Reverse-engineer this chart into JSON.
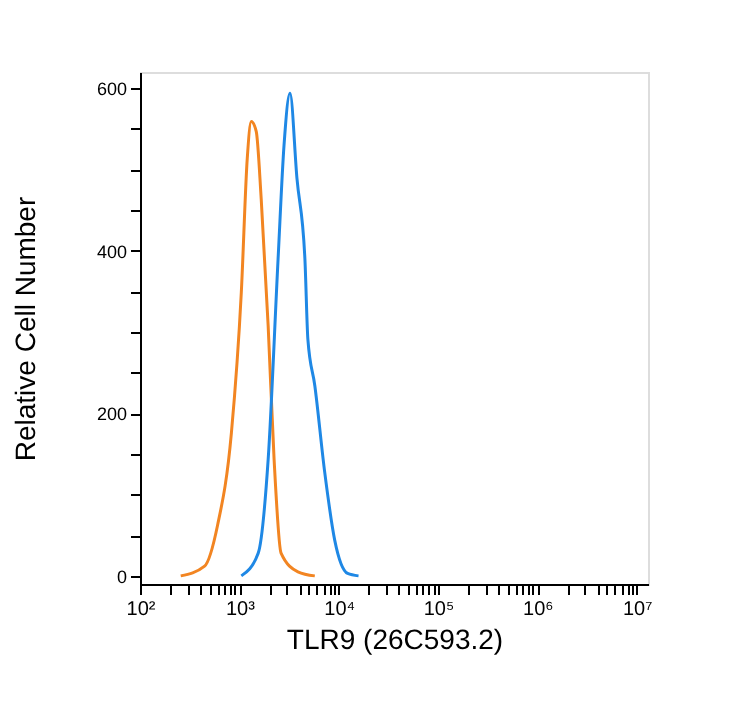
{
  "chart_data": {
    "type": "line",
    "xlabel": "TLR9 (26C593.2)",
    "ylabel": "Relative Cell Number",
    "log": "x",
    "grid": false,
    "legend": false,
    "marker": "none",
    "line_style": "solid",
    "xlim": [
      100,
      13000000
    ],
    "ylim": [
      -10,
      620
    ],
    "xticks": [
      {
        "value": 100,
        "label": "10²"
      },
      {
        "value": 200,
        "label": null
      },
      {
        "value": 300,
        "label": null
      },
      {
        "value": 400,
        "label": null
      },
      {
        "value": 500,
        "label": null
      },
      {
        "value": 600,
        "label": null
      },
      {
        "value": 700,
        "label": null
      },
      {
        "value": 800,
        "label": null
      },
      {
        "value": 900,
        "label": null
      },
      {
        "value": 1000,
        "label": "10³"
      },
      {
        "value": 2000,
        "label": null
      },
      {
        "value": 3000,
        "label": null
      },
      {
        "value": 4000,
        "label": null
      },
      {
        "value": 5000,
        "label": null
      },
      {
        "value": 6000,
        "label": null
      },
      {
        "value": 7000,
        "label": null
      },
      {
        "value": 8000,
        "label": null
      },
      {
        "value": 9000,
        "label": null
      },
      {
        "value": 10000,
        "label": "10⁴"
      },
      {
        "value": 20000,
        "label": null
      },
      {
        "value": 30000,
        "label": null
      },
      {
        "value": 40000,
        "label": null
      },
      {
        "value": 50000,
        "label": null
      },
      {
        "value": 60000,
        "label": null
      },
      {
        "value": 70000,
        "label": null
      },
      {
        "value": 80000,
        "label": null
      },
      {
        "value": 90000,
        "label": null
      },
      {
        "value": 100000,
        "label": "10⁵"
      },
      {
        "value": 200000,
        "label": null
      },
      {
        "value": 300000,
        "label": null
      },
      {
        "value": 400000,
        "label": null
      },
      {
        "value": 500000,
        "label": null
      },
      {
        "value": 600000,
        "label": null
      },
      {
        "value": 700000,
        "label": null
      },
      {
        "value": 800000,
        "label": null
      },
      {
        "value": 900000,
        "label": null
      },
      {
        "value": 1000000,
        "label": "10⁶"
      },
      {
        "value": 2000000,
        "label": null
      },
      {
        "value": 3000000,
        "label": null
      },
      {
        "value": 4000000,
        "label": null
      },
      {
        "value": 5000000,
        "label": null
      },
      {
        "value": 6000000,
        "label": null
      },
      {
        "value": 7000000,
        "label": null
      },
      {
        "value": 8000000,
        "label": null
      },
      {
        "value": 9000000,
        "label": null
      },
      {
        "value": 10000000,
        "label": "10⁷"
      }
    ],
    "yticks": [
      0,
      {
        "value": 50,
        "label": null
      },
      {
        "value": 100,
        "label": null
      },
      {
        "value": 150,
        "label": null
      },
      200,
      {
        "value": 250,
        "label": null
      },
      {
        "value": 300,
        "label": null
      },
      {
        "value": 350,
        "label": null
      },
      400,
      {
        "value": 450,
        "label": null
      },
      {
        "value": 500,
        "label": null
      },
      {
        "value": 550,
        "label": null
      },
      600
    ],
    "series": [
      {
        "color": "#f28522",
        "x": [
          257,
          447,
          603,
          832,
          1047,
          1202,
          1318,
          1479,
          1660,
          1950,
          2239,
          2630,
          3890,
          5750
        ],
        "values": [
          0,
          12,
          62,
          176,
          349,
          514,
          559,
          547,
          464,
          308,
          143,
          28,
          5,
          0
        ]
      },
      {
        "color": "#1f88e5",
        "x": [
          1047,
          1549,
          1950,
          2455,
          2818,
          3236,
          3802,
          4571,
          4898,
          5754,
          7244,
          9120,
          12303,
          15849
        ],
        "values": [
          0,
          28,
          143,
          390,
          530,
          594,
          489,
          390,
          291,
          234,
          127,
          44,
          3,
          0
        ]
      }
    ]
  }
}
